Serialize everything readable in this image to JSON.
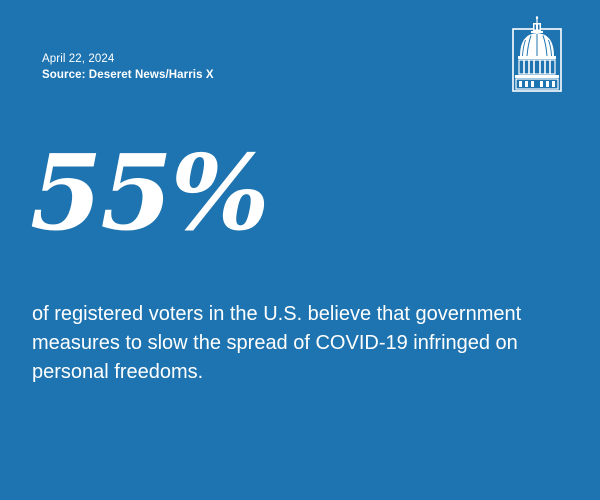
{
  "meta": {
    "date": "April 22, 2024",
    "source": "Source: Deseret News/Harris X"
  },
  "stat": {
    "value": "55%",
    "description": "of registered voters in the U.S. believe that government measures to slow the spread of COVID-19 infringed on personal freedoms."
  },
  "logo": {
    "icon": "capitol-dome-icon"
  },
  "colors": {
    "background": "#1e74b0",
    "text": "#ffffff"
  }
}
